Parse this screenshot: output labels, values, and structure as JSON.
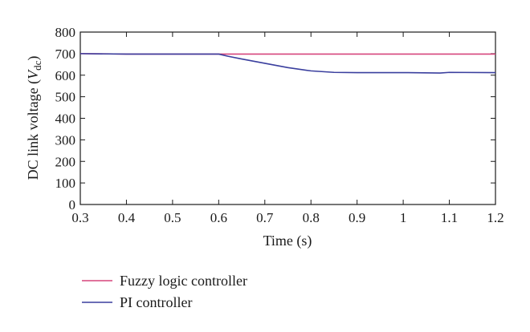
{
  "chart_data": {
    "type": "line",
    "xlabel": "Time (s)",
    "ylabel_main": "DC link voltage (",
    "ylabel_var": "V",
    "ylabel_sub": "dc",
    "ylabel_close": ")",
    "xlim": [
      0.3,
      1.2
    ],
    "ylim": [
      0,
      800
    ],
    "xticks": [
      0.3,
      0.4,
      0.5,
      0.6,
      0.7,
      0.8,
      0.9,
      1,
      1.1,
      1.2
    ],
    "xtick_labels": [
      "0.3",
      "0.4",
      "0.5",
      "0.6",
      "0.7",
      "0.8",
      "0.9",
      "1",
      "1.1",
      "1.2"
    ],
    "yticks": [
      0,
      100,
      200,
      300,
      400,
      500,
      600,
      700,
      800
    ],
    "ytick_labels": [
      "0",
      "100",
      "200",
      "300",
      "400",
      "500",
      "600",
      "700",
      "800"
    ],
    "grid": false,
    "legend_position": "bottom-left, below the plot",
    "series": [
      {
        "name": "Fuzzy logic controller",
        "color": "#d6457c",
        "x": [
          0.3,
          0.4,
          0.5,
          0.6,
          0.7,
          0.8,
          0.9,
          1.0,
          1.1,
          1.2
        ],
        "y": [
          700,
          698,
          698,
          698,
          698,
          698,
          698,
          698,
          698,
          698
        ]
      },
      {
        "name": "PI controller",
        "color": "#3a3f9e",
        "x": [
          0.3,
          0.4,
          0.5,
          0.6,
          0.62,
          0.65,
          0.7,
          0.75,
          0.8,
          0.85,
          0.9,
          1.0,
          1.08,
          1.1,
          1.2
        ],
        "y": [
          700,
          698,
          698,
          698,
          688,
          675,
          655,
          635,
          620,
          613,
          612,
          612,
          610,
          613,
          612
        ]
      }
    ]
  }
}
